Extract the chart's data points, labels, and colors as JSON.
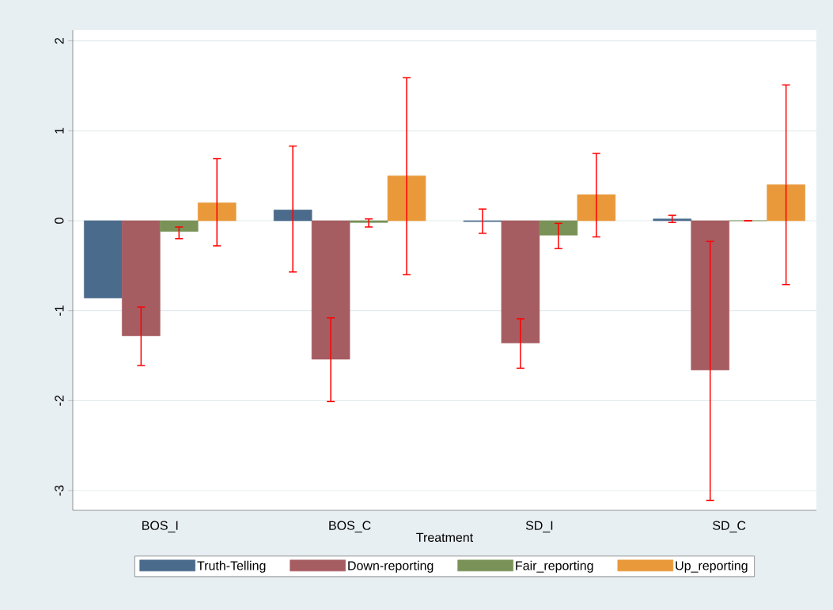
{
  "chart_data": {
    "type": "bar",
    "xlabel": "Treatment",
    "categories": [
      "BOS_I",
      "BOS_C",
      "SD_I",
      "SD_C"
    ],
    "series": [
      {
        "name": "Truth-Telling",
        "color": "#4b6b8d",
        "values": [
          -0.86,
          0.12,
          -0.01,
          0.02
        ],
        "errors": [
          null,
          [
            -0.57,
            0.83
          ],
          [
            -0.14,
            0.13
          ],
          [
            -0.02,
            0.06
          ]
        ]
      },
      {
        "name": "Down-reporting",
        "color": "#a65d62",
        "values": [
          -1.28,
          -1.54,
          -1.36,
          -1.66
        ],
        "errors": [
          [
            -1.61,
            -0.96
          ],
          [
            -2.01,
            -1.08
          ],
          [
            -1.64,
            -1.09
          ],
          [
            -3.11,
            -0.23
          ]
        ]
      },
      {
        "name": "Fair_reporting",
        "color": "#7a9257",
        "values": [
          -0.12,
          -0.02,
          -0.16,
          0
        ],
        "errors": [
          [
            -0.2,
            -0.07
          ],
          [
            -0.07,
            0.02
          ],
          [
            -0.31,
            -0.03
          ],
          [
            0,
            0
          ]
        ]
      },
      {
        "name": "Up_reporting",
        "color": "#e9993a",
        "values": [
          0.2,
          0.5,
          0.29,
          0.4
        ],
        "errors": [
          [
            -0.28,
            0.69
          ],
          [
            -0.6,
            1.59
          ],
          [
            -0.18,
            0.75
          ],
          [
            -0.71,
            1.51
          ]
        ]
      }
    ],
    "ylim": [
      -3.22,
      2.12
    ],
    "yticks": [
      -3,
      -2,
      -1,
      0,
      1,
      2
    ],
    "grid": "y",
    "legend": "bottom"
  }
}
